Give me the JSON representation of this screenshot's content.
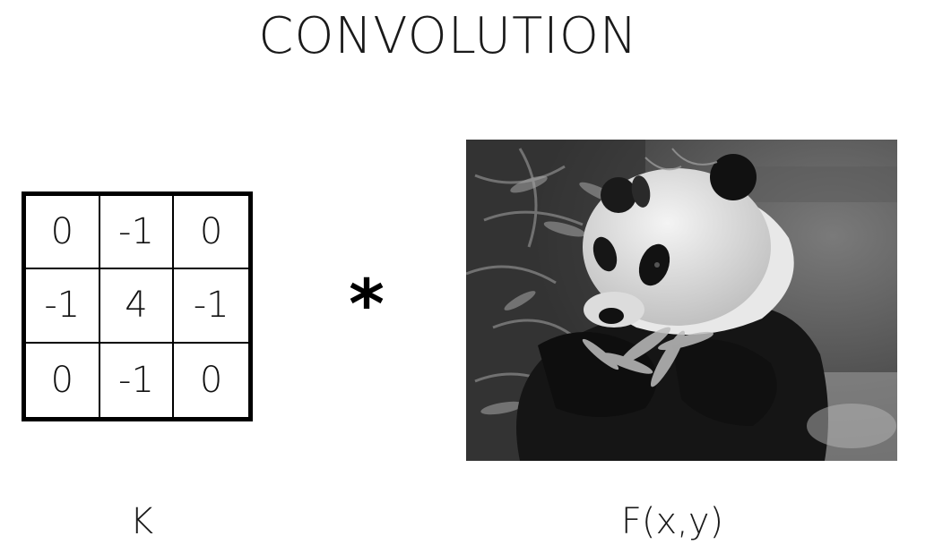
{
  "title": "CONVOLUTION",
  "kernel": {
    "rows": [
      [
        "0",
        "-1",
        "0"
      ],
      [
        "-1",
        "4",
        "-1"
      ],
      [
        "0",
        "-1",
        "0"
      ]
    ]
  },
  "operator": "*",
  "kernel_label": "K",
  "image_label": "F(x,y)",
  "image": {
    "subject": "grayscale photo of a giant panda eating bamboo"
  }
}
